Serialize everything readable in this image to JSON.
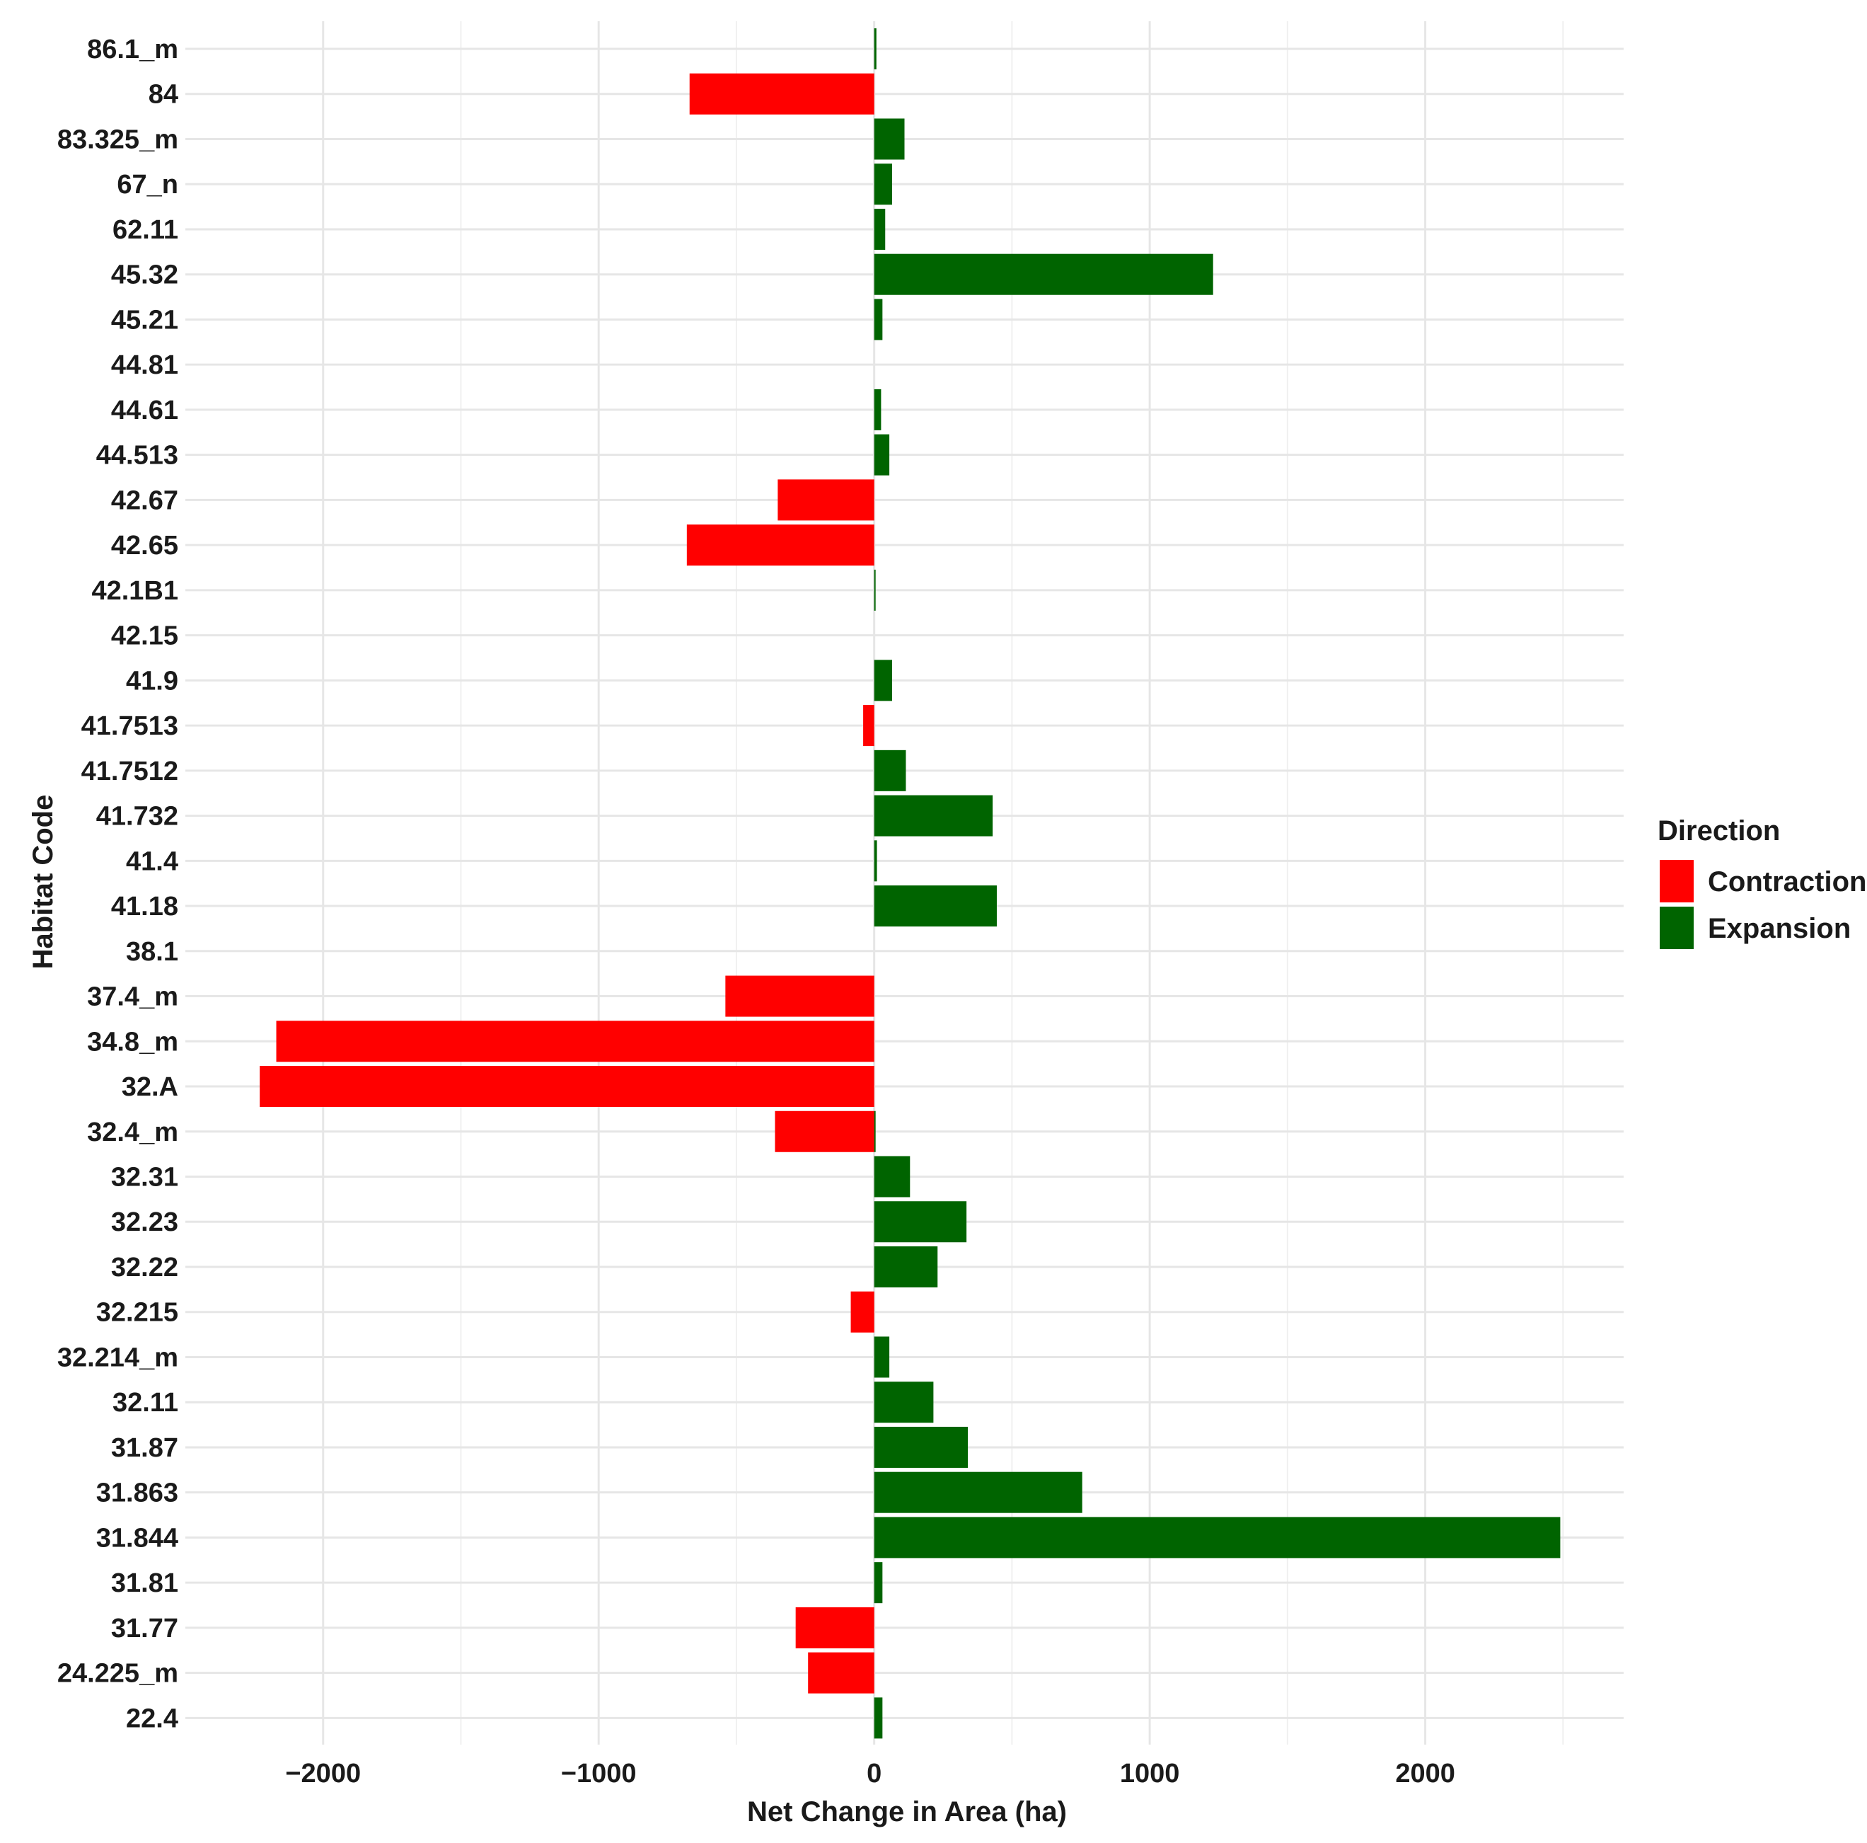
{
  "chart_data": {
    "type": "bar",
    "orientation": "horizontal",
    "xlabel": "Net Change in Area (ha)",
    "ylabel": "Habitat Code",
    "xlim": [
      -2500,
      2720
    ],
    "x_ticks": [
      -2000,
      -1000,
      0,
      1000,
      2000
    ],
    "x_tick_labels": [
      "−2000",
      "−1000",
      "0",
      "1000",
      "2000"
    ],
    "grid": true,
    "legend": {
      "title": "Direction",
      "position": "right",
      "items": [
        {
          "label": "Contraction",
          "color": "#ff0000"
        },
        {
          "label": "Expansion",
          "color": "#006400"
        }
      ]
    },
    "colors": {
      "Contraction": "#ff0000",
      "Expansion": "#006400"
    },
    "categories": [
      "86.1_m",
      "84",
      "83.325_m",
      "67_n",
      "62.11",
      "45.32",
      "45.21",
      "44.81",
      "44.61",
      "44.513",
      "42.67",
      "42.65",
      "42.1B1",
      "42.15",
      "41.9",
      "41.7513",
      "41.7512",
      "41.732",
      "41.4",
      "41.18",
      "38.1",
      "37.4_m",
      "34.8_m",
      "32.A",
      "32.4_m",
      "32.31",
      "32.23",
      "32.22",
      "32.215",
      "32.214_m",
      "32.11",
      "31.87",
      "31.863",
      "31.844",
      "31.81",
      "31.77",
      "24.225_m",
      "22.4"
    ],
    "series": [
      {
        "name": "Contraction",
        "values": [
          null,
          -670,
          null,
          null,
          null,
          null,
          null,
          null,
          null,
          null,
          -350,
          -680,
          null,
          null,
          null,
          -40,
          null,
          null,
          null,
          null,
          null,
          -540,
          -2170,
          -2230,
          -360,
          null,
          null,
          null,
          -85,
          null,
          null,
          null,
          null,
          null,
          null,
          -285,
          -240,
          null
        ]
      },
      {
        "name": "Expansion",
        "values": [
          8,
          null,
          110,
          65,
          40,
          1230,
          30,
          null,
          25,
          55,
          null,
          null,
          5,
          null,
          65,
          null,
          115,
          430,
          10,
          445,
          null,
          null,
          null,
          null,
          5,
          130,
          335,
          230,
          null,
          55,
          215,
          340,
          755,
          2490,
          30,
          null,
          null,
          30
        ]
      }
    ]
  }
}
